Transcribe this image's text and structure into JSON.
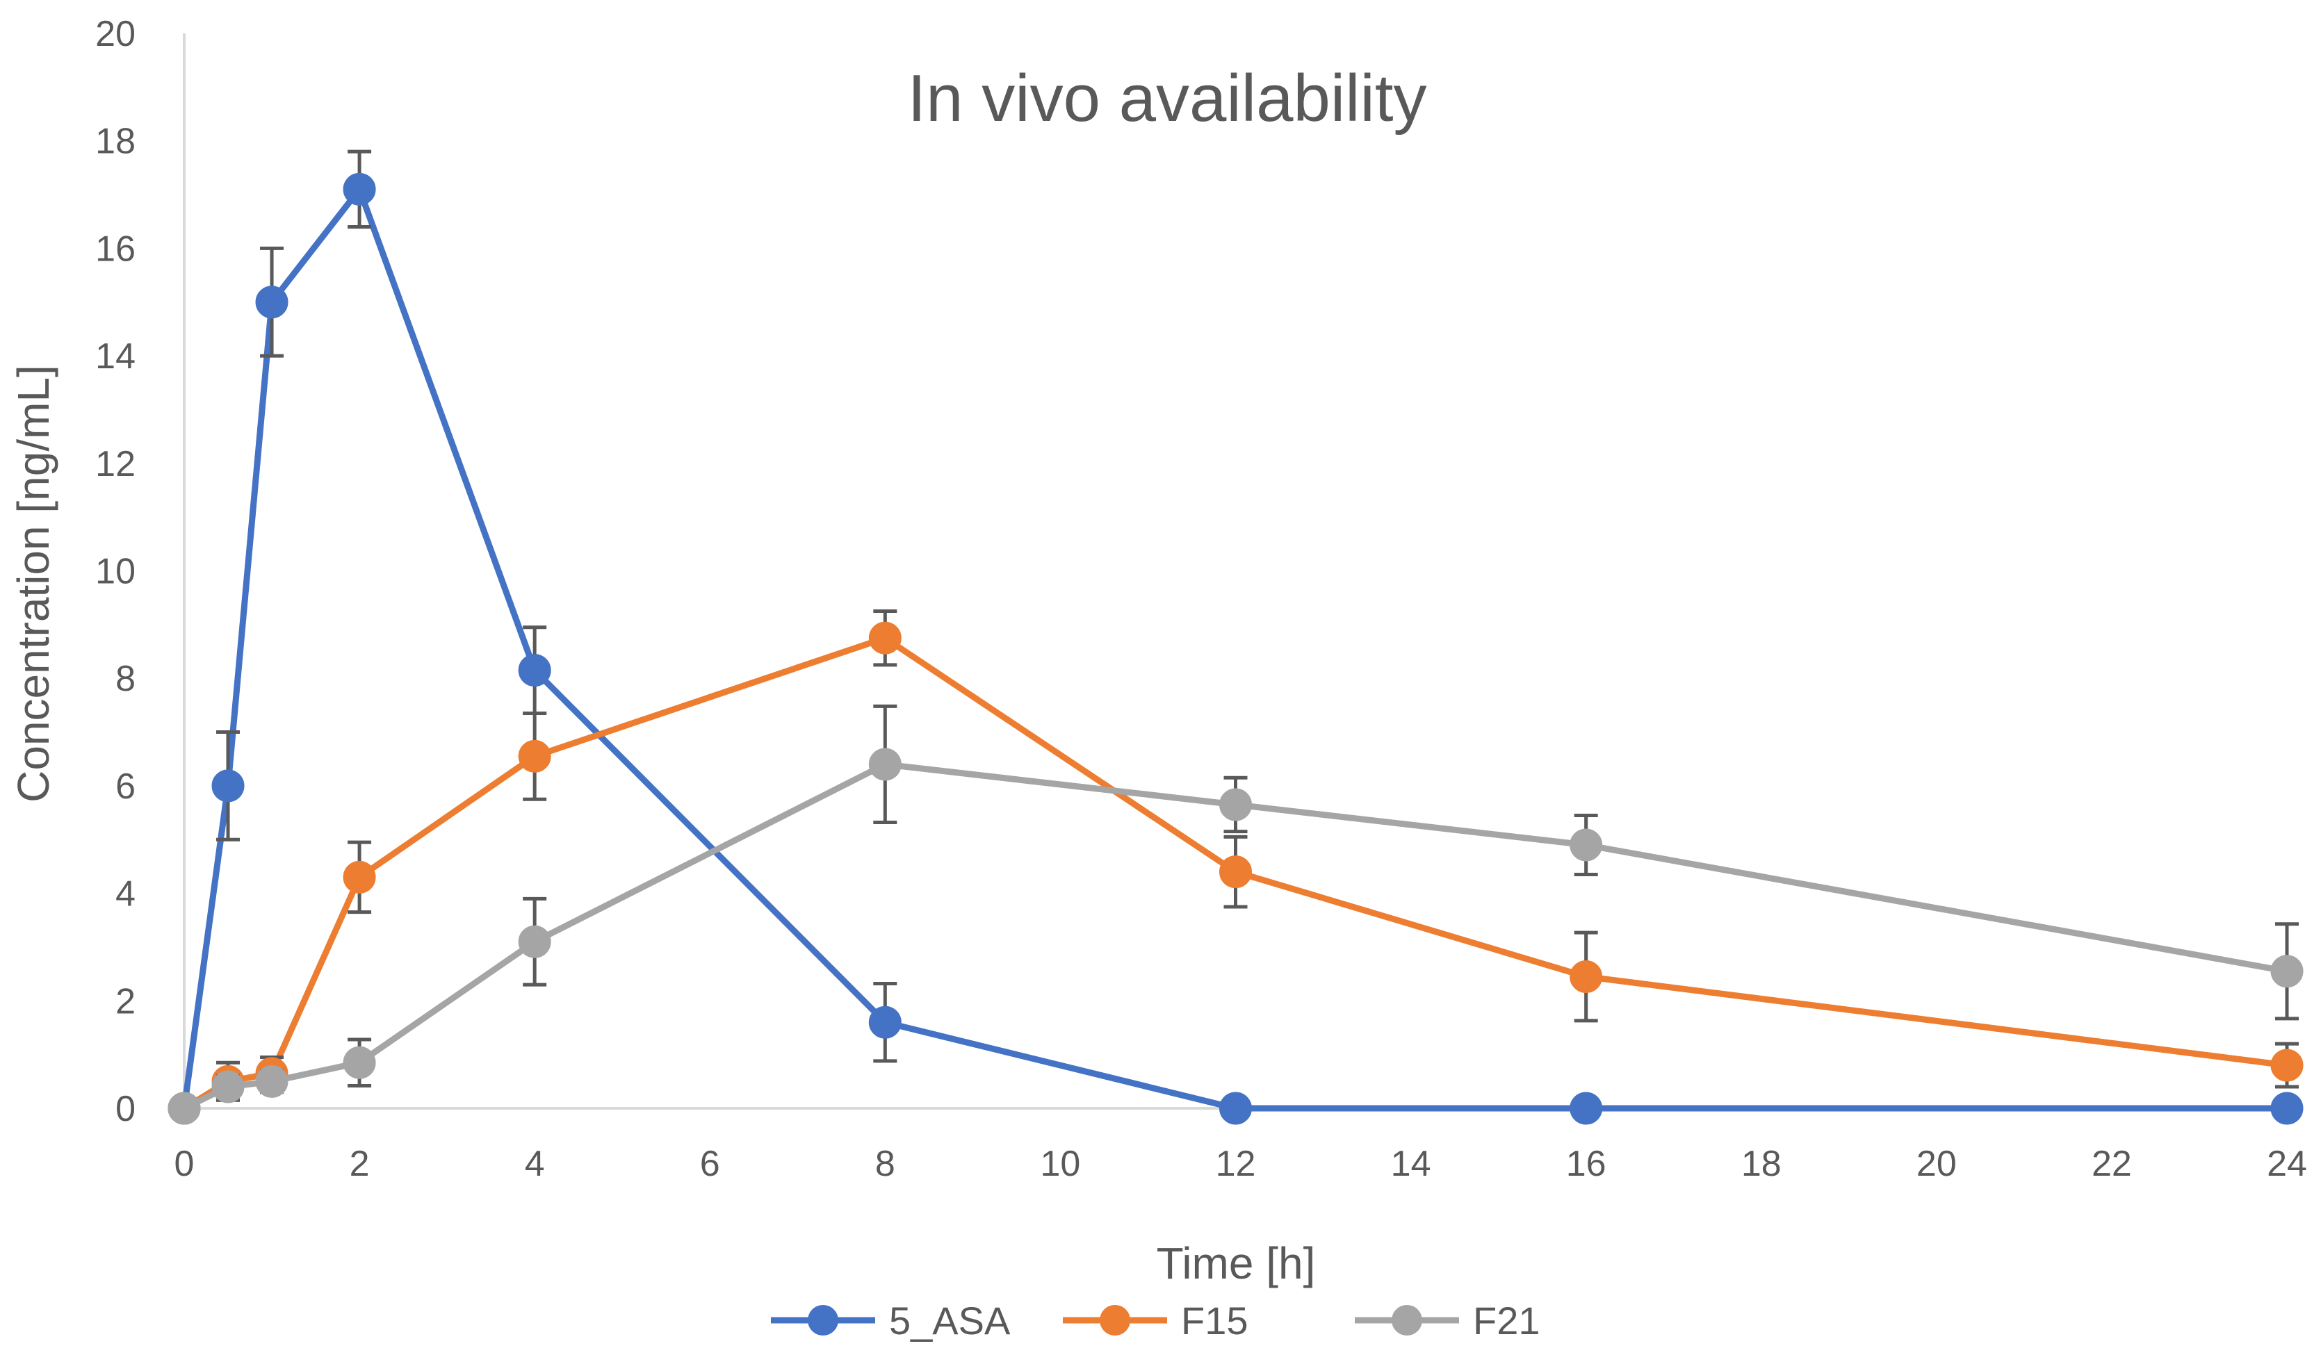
{
  "chart_data": {
    "type": "line",
    "title": "In vivo availability",
    "xlabel": "Time [h]",
    "ylabel": "Concentration [ng/mL]",
    "xlim": [
      0,
      24
    ],
    "ylim": [
      0,
      20
    ],
    "x_ticks": [
      0,
      2,
      4,
      6,
      8,
      10,
      12,
      14,
      16,
      18,
      20,
      22,
      24
    ],
    "y_ticks": [
      0,
      2,
      4,
      6,
      8,
      10,
      12,
      14,
      16,
      18,
      20
    ],
    "grid": false,
    "legend_position": "bottom",
    "x": [
      0,
      0.5,
      1,
      2,
      4,
      8,
      12,
      16,
      24
    ],
    "series": [
      {
        "name": "5_ASA",
        "color": "#4472C4",
        "values": [
          0,
          6.0,
          15.0,
          17.1,
          8.15,
          1.6,
          0,
          0,
          0
        ],
        "errors": [
          0,
          1.0,
          1.0,
          0.7,
          0.8,
          0.72,
          0,
          0,
          0
        ]
      },
      {
        "name": "F15",
        "color": "#ED7D31",
        "values": [
          0,
          0.5,
          0.65,
          4.3,
          6.55,
          8.75,
          4.4,
          2.45,
          0.8
        ],
        "errors": [
          0,
          0.35,
          0.3,
          0.65,
          0.8,
          0.5,
          0.65,
          0.82,
          0.4
        ]
      },
      {
        "name": "F21",
        "color": "#A5A5A5",
        "values": [
          0,
          0.4,
          0.5,
          0.85,
          3.1,
          6.4,
          5.65,
          4.9,
          2.55
        ],
        "errors": [
          0,
          0.2,
          0.2,
          0.43,
          0.8,
          1.08,
          0.5,
          0.55,
          0.88
        ]
      }
    ]
  }
}
